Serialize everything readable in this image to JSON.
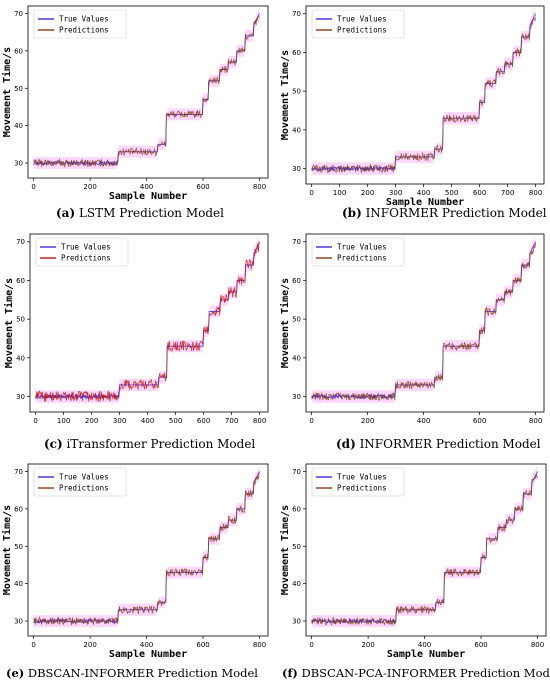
{
  "colors": {
    "true": "#3b2dd8",
    "pred": "#8a3b12",
    "pred_alt": "#c4140a",
    "band": "#ff8cff"
  },
  "chart_data": [
    {
      "id": "a",
      "type": "line",
      "title": "",
      "caption_label": "(a)",
      "caption_text": " LSTM Prediction Model",
      "xlabel": "Sample Number",
      "ylabel": "Movement Time/s",
      "xlim": [
        -20,
        830
      ],
      "ylim": [
        26,
        72
      ],
      "xticks": [
        "0",
        "200",
        "400",
        "600",
        "800"
      ],
      "xtick_values": [
        0,
        200,
        400,
        600,
        800
      ],
      "yticks": [
        "30",
        "40",
        "50",
        "60",
        "70"
      ],
      "ytick_values": [
        30,
        40,
        50,
        60,
        70
      ],
      "grid": false,
      "legend_position": "top-left",
      "series": [
        {
          "name": "True Values",
          "x": [
            0,
            299,
            300,
            439,
            440,
            469,
            470,
            599,
            600,
            619,
            620,
            659,
            660,
            689,
            690,
            719,
            720,
            749,
            750,
            779,
            780,
            800
          ],
          "values": [
            30,
            30,
            33,
            33,
            35,
            35,
            43,
            43,
            47,
            47,
            52,
            52,
            55,
            55,
            57,
            57,
            60,
            60,
            64,
            64,
            67,
            70
          ]
        },
        {
          "name": "Predictions",
          "x": [
            0,
            299,
            300,
            439,
            440,
            469,
            470,
            599,
            600,
            619,
            620,
            659,
            660,
            689,
            690,
            719,
            720,
            749,
            750,
            779,
            780,
            800
          ],
          "values": [
            30,
            30,
            33,
            33,
            35,
            35,
            43,
            43,
            47,
            47,
            52,
            52,
            55,
            55,
            57,
            57,
            60,
            60,
            64,
            64,
            67,
            69
          ]
        }
      ]
    },
    {
      "id": "b",
      "type": "line",
      "title": "",
      "caption_label": "(b)",
      "caption_text": " INFORMER Prediction Model",
      "xlabel": "Sample Number",
      "ylabel": "Movement Time/s",
      "xlim": [
        -20,
        830
      ],
      "ylim": [
        26,
        72
      ],
      "xticks": [
        "0",
        "100",
        "200",
        "300",
        "400",
        "500",
        "600",
        "700",
        "800"
      ],
      "xtick_values": [
        0,
        100,
        200,
        300,
        400,
        500,
        600,
        700,
        800
      ],
      "yticks": [
        "30",
        "40",
        "50",
        "60",
        "70"
      ],
      "ytick_values": [
        30,
        40,
        50,
        60,
        70
      ],
      "grid": false,
      "legend_position": "top-left",
      "series": [
        {
          "name": "True Values",
          "x": [
            0,
            299,
            300,
            439,
            440,
            469,
            470,
            599,
            600,
            619,
            620,
            659,
            660,
            689,
            690,
            719,
            720,
            749,
            750,
            779,
            780,
            800
          ],
          "values": [
            30,
            30,
            33,
            33,
            35,
            35,
            43,
            43,
            47,
            47,
            52,
            52,
            55,
            55,
            57,
            57,
            60,
            60,
            64,
            64,
            67,
            70
          ]
        },
        {
          "name": "Predictions",
          "x": [
            0,
            299,
            300,
            439,
            440,
            469,
            470,
            599,
            600,
            619,
            620,
            659,
            660,
            689,
            690,
            719,
            720,
            749,
            750,
            779,
            780,
            800
          ],
          "values": [
            30,
            30,
            33,
            33,
            35,
            35,
            43,
            43,
            47,
            47,
            52,
            52,
            55,
            55,
            57,
            57,
            60,
            60,
            64,
            64,
            67,
            69
          ]
        }
      ]
    },
    {
      "id": "c",
      "type": "line",
      "title": "",
      "caption_label": "(c)",
      "caption_text": " iTransformer Prediction Model",
      "xlabel": "",
      "ylabel": "Movement Time/s",
      "xlim": [
        -20,
        830
      ],
      "ylim": [
        26,
        72
      ],
      "xticks": [
        "0",
        "100",
        "200",
        "300",
        "400",
        "500",
        "600",
        "700",
        "800"
      ],
      "xtick_values": [
        0,
        100,
        200,
        300,
        400,
        500,
        600,
        700,
        800
      ],
      "yticks": [
        "30",
        "40",
        "50",
        "60",
        "70"
      ],
      "ytick_values": [
        30,
        40,
        50,
        60,
        70
      ],
      "grid": false,
      "legend_position": "top-left",
      "series": [
        {
          "name": "True Values",
          "x": [
            0,
            299,
            300,
            439,
            440,
            469,
            470,
            599,
            600,
            619,
            620,
            659,
            660,
            689,
            690,
            719,
            720,
            749,
            750,
            779,
            780,
            800
          ],
          "values": [
            30,
            30,
            33,
            33,
            35,
            35,
            43,
            43,
            47,
            47,
            52,
            52,
            55,
            55,
            57,
            57,
            60,
            60,
            64,
            64,
            67,
            70
          ]
        },
        {
          "name": "Predictions",
          "x": [
            0,
            299,
            300,
            439,
            440,
            469,
            470,
            599,
            600,
            619,
            620,
            659,
            660,
            689,
            690,
            719,
            720,
            749,
            750,
            779,
            780,
            800
          ],
          "values": [
            30,
            30,
            33,
            33,
            35,
            35,
            43,
            43,
            47,
            47,
            52,
            52,
            55,
            55,
            57,
            57,
            60,
            60,
            64,
            64,
            67,
            69
          ]
        }
      ]
    },
    {
      "id": "d",
      "type": "line",
      "title": "",
      "caption_label": "(d)",
      "caption_text": " INFORMER Prediction Model",
      "xlabel": "",
      "ylabel": "Movement Time/s",
      "xlim": [
        -20,
        830
      ],
      "ylim": [
        26,
        72
      ],
      "xticks": [
        "0",
        "200",
        "400",
        "600",
        "800"
      ],
      "xtick_values": [
        0,
        200,
        400,
        600,
        800
      ],
      "yticks": [
        "30",
        "40",
        "50",
        "60",
        "70"
      ],
      "ytick_values": [
        30,
        40,
        50,
        60,
        70
      ],
      "grid": false,
      "legend_position": "top-left",
      "series": [
        {
          "name": "True Values",
          "x": [
            0,
            299,
            300,
            439,
            440,
            469,
            470,
            599,
            600,
            619,
            620,
            659,
            660,
            689,
            690,
            719,
            720,
            749,
            750,
            779,
            780,
            800
          ],
          "values": [
            30,
            30,
            33,
            33,
            35,
            35,
            43,
            43,
            47,
            47,
            52,
            52,
            55,
            55,
            57,
            57,
            60,
            60,
            64,
            64,
            67,
            70
          ]
        },
        {
          "name": "Predictions",
          "x": [
            0,
            299,
            300,
            439,
            440,
            469,
            470,
            599,
            600,
            619,
            620,
            659,
            660,
            689,
            690,
            719,
            720,
            749,
            750,
            779,
            780,
            800
          ],
          "values": [
            30,
            30,
            33,
            33,
            35,
            35,
            43,
            43,
            47,
            47,
            52,
            52,
            55,
            55,
            57,
            57,
            60,
            60,
            64,
            64,
            67,
            69
          ]
        }
      ]
    },
    {
      "id": "e",
      "type": "line",
      "title": "",
      "caption_label": "(e)",
      "caption_text": " DBSCAN-INFORMER Prediction Model",
      "xlabel": "Sample Number",
      "ylabel": "Movement Time/s",
      "xlim": [
        -20,
        830
      ],
      "ylim": [
        26,
        72
      ],
      "xticks": [
        "0",
        "200",
        "400",
        "600",
        "800"
      ],
      "xtick_values": [
        0,
        200,
        400,
        600,
        800
      ],
      "yticks": [
        "30",
        "40",
        "50",
        "60",
        "70"
      ],
      "ytick_values": [
        30,
        40,
        50,
        60,
        70
      ],
      "grid": false,
      "legend_position": "top-left",
      "series": [
        {
          "name": "True Values",
          "x": [
            0,
            299,
            300,
            439,
            440,
            469,
            470,
            599,
            600,
            619,
            620,
            659,
            660,
            689,
            690,
            719,
            720,
            749,
            750,
            779,
            780,
            800
          ],
          "values": [
            30,
            30,
            33,
            33,
            35,
            35,
            43,
            43,
            47,
            47,
            52,
            52,
            55,
            55,
            57,
            57,
            60,
            60,
            64,
            64,
            67,
            70
          ]
        },
        {
          "name": "Predictions",
          "x": [
            0,
            299,
            300,
            439,
            440,
            469,
            470,
            599,
            600,
            619,
            620,
            659,
            660,
            689,
            690,
            719,
            720,
            749,
            750,
            779,
            780,
            800
          ],
          "values": [
            30,
            30,
            33,
            33,
            35,
            35,
            43,
            43,
            47,
            47,
            52,
            52,
            55,
            55,
            57,
            57,
            60,
            60,
            64,
            64,
            67,
            69
          ]
        }
      ]
    },
    {
      "id": "f",
      "type": "line",
      "title": "",
      "caption_label": "(f)",
      "caption_text": " DBSCAN-PCA-INFORMER Prediction Model",
      "xlabel": "Sample Number",
      "ylabel": "Movement Time/s",
      "xlim": [
        -20,
        830
      ],
      "ylim": [
        26,
        72
      ],
      "xticks": [
        "0",
        "200",
        "400",
        "600",
        "800"
      ],
      "xtick_values": [
        0,
        200,
        400,
        600,
        800
      ],
      "yticks": [
        "30",
        "40",
        "50",
        "60",
        "70"
      ],
      "ytick_values": [
        30,
        40,
        50,
        60,
        70
      ],
      "grid": false,
      "legend_position": "top-left",
      "series": [
        {
          "name": "True Values",
          "x": [
            0,
            299,
            300,
            439,
            440,
            469,
            470,
            599,
            600,
            619,
            620,
            659,
            660,
            689,
            690,
            719,
            720,
            749,
            750,
            779,
            780,
            800
          ],
          "values": [
            30,
            30,
            33,
            33,
            35,
            35,
            43,
            43,
            47,
            47,
            52,
            52,
            55,
            55,
            57,
            57,
            60,
            60,
            64,
            64,
            67,
            70
          ]
        },
        {
          "name": "Predictions",
          "x": [
            0,
            299,
            300,
            439,
            440,
            469,
            470,
            599,
            600,
            619,
            620,
            659,
            660,
            689,
            690,
            719,
            720,
            749,
            750,
            779,
            780,
            800
          ],
          "values": [
            30,
            30,
            33,
            33,
            35,
            35,
            43,
            43,
            47,
            47,
            52,
            52,
            55,
            55,
            57,
            57,
            60,
            60,
            64,
            64,
            67,
            69
          ]
        }
      ]
    }
  ]
}
